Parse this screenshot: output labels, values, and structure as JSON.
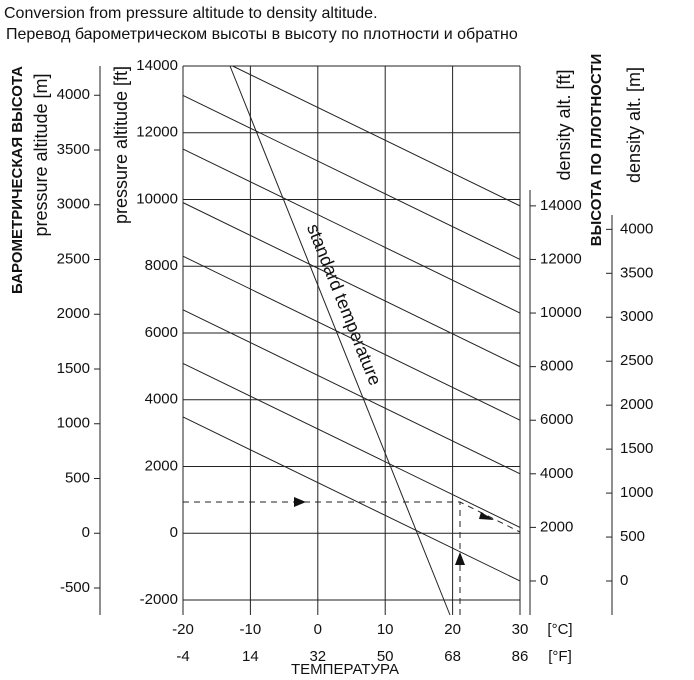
{
  "chart_data": {
    "type": "nomogram",
    "title": "Conversion from pressure altitude to density altitude.",
    "subtitle": "Перевод барометрическом высоты в высоту по плотности и обратно",
    "x_label": "ТЕМПЕРАТУРА",
    "x_unit": "[°C]",
    "x2_unit": "[°F]",
    "xlim": [
      -20,
      30
    ],
    "xticks": [
      -20,
      -10,
      0,
      10,
      20,
      30
    ],
    "x2ticks": [
      -4,
      14,
      32,
      50,
      68,
      86
    ],
    "y_label": "pressure altitude [ft]",
    "ylim": [
      -2000,
      14000
    ],
    "yticks": [
      -2000,
      0,
      2000,
      4000,
      6000,
      8000,
      10000,
      12000,
      14000
    ],
    "y_m_label": "pressure altitude [m]",
    "y_ru_label": "БАРОМЕТРИЧЕСКАЯ ВЫСОТА",
    "ylim_m": [
      -609.6,
      4267.2
    ],
    "yticks_m": [
      -500,
      0,
      500,
      1000,
      1500,
      2000,
      2500,
      3000,
      3500,
      4000
    ],
    "y2_label": "density alt. [ft]",
    "y2lim": [
      -710,
      19220
    ],
    "y2ticks": [
      0,
      2000,
      4000,
      6000,
      8000,
      10000,
      12000,
      14000
    ],
    "y2_m_label": "density alt. [m]",
    "y2_ru_label": "ВЫСОТА ПО ПЛОТНОСТИ",
    "y2lim_m": [
      -216,
      5858
    ],
    "y2ticks_m": [
      0,
      500,
      1000,
      1500,
      2000,
      2500,
      3000,
      3500,
      4000
    ],
    "curve_label": "standard temperature"
  }
}
